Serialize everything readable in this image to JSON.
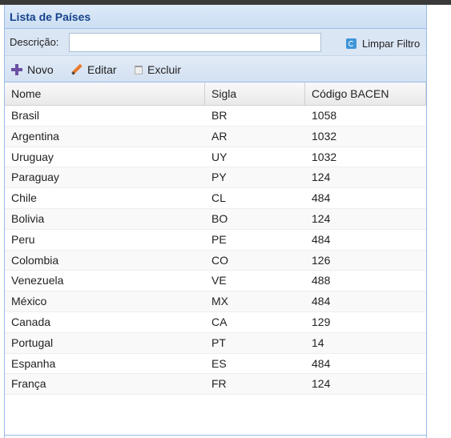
{
  "panel": {
    "title": "Lista de Países"
  },
  "filter": {
    "label": "Descrição:",
    "value": "",
    "placeholder": "",
    "clear_label": "Limpar Filtro",
    "clear_icon": "refresh-icon"
  },
  "toolbar": {
    "new_label": "Novo",
    "edit_label": "Editar",
    "delete_label": "Excluir"
  },
  "grid": {
    "columns": [
      "Nome",
      "Sigla",
      "Código BACEN"
    ],
    "rows": [
      [
        "Brasil",
        "BR",
        "1058"
      ],
      [
        "Argentina",
        "AR",
        "1032"
      ],
      [
        "Uruguay",
        "UY",
        "1032"
      ],
      [
        "Paraguay",
        "PY",
        "124"
      ],
      [
        "Chile",
        "CL",
        "484"
      ],
      [
        "Bolivia",
        "BO",
        "124"
      ],
      [
        "Peru",
        "PE",
        "484"
      ],
      [
        "Colombia",
        "CO",
        "126"
      ],
      [
        "Venezuela",
        "VE",
        "488"
      ],
      [
        "México",
        "MX",
        "484"
      ],
      [
        "Canada",
        "CA",
        "129"
      ],
      [
        "Portugal",
        "PT",
        "14"
      ],
      [
        "Espanha",
        "ES",
        "484"
      ],
      [
        "França",
        "FR",
        "124"
      ]
    ]
  },
  "colors": {
    "header_title": "#15428b",
    "border": "#99bbe8",
    "new_icon": "#6a4fa3",
    "edit_icon": "#e8782b",
    "clear_icon": "#3f95d9"
  }
}
